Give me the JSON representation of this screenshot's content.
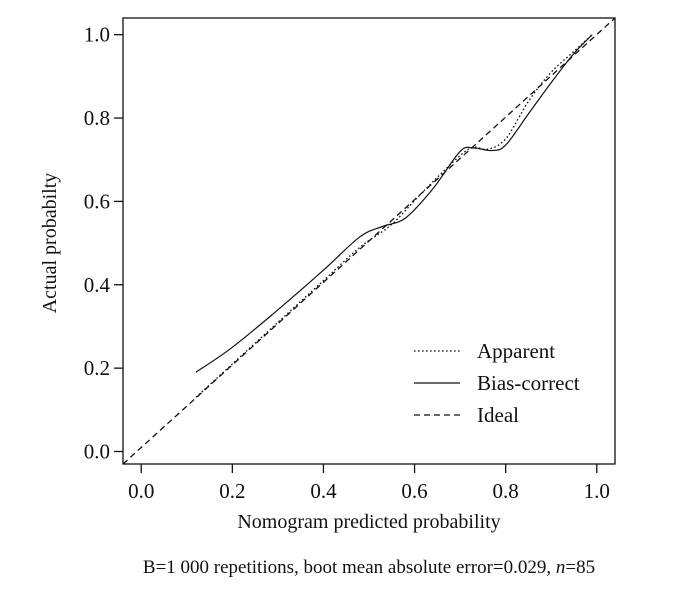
{
  "chart_data": {
    "type": "line",
    "title": "",
    "xlabel": "Nomogram predicted probability",
    "ylabel": "Actual probabilty",
    "xlim": [
      -0.04,
      1.04
    ],
    "ylim": [
      -0.03,
      1.04
    ],
    "x_ticks": [
      0.0,
      0.2,
      0.4,
      0.6,
      0.8,
      1.0
    ],
    "y_ticks": [
      0.0,
      0.2,
      0.4,
      0.6,
      0.8,
      1.0
    ],
    "x_tick_labels": [
      "0.0",
      "0.2",
      "0.4",
      "0.6",
      "0.8",
      "1.0"
    ],
    "y_tick_labels": [
      "0.0",
      "0.2",
      "0.4",
      "0.6",
      "0.8",
      "1.0"
    ],
    "grid": false,
    "legend_position": "bottom-right",
    "series": [
      {
        "name": "Apparent",
        "style": "dotted",
        "points": [
          [
            0.12,
            0.13
          ],
          [
            0.2,
            0.21
          ],
          [
            0.3,
            0.31
          ],
          [
            0.4,
            0.41
          ],
          [
            0.48,
            0.49
          ],
          [
            0.55,
            0.545
          ],
          [
            0.62,
            0.625
          ],
          [
            0.7,
            0.71
          ],
          [
            0.73,
            0.73
          ],
          [
            0.76,
            0.725
          ],
          [
            0.8,
            0.75
          ],
          [
            0.85,
            0.84
          ],
          [
            0.9,
            0.91
          ],
          [
            0.95,
            0.96
          ],
          [
            0.99,
            1.0
          ]
        ]
      },
      {
        "name": "Bias-correct",
        "style": "solid",
        "points": [
          [
            0.12,
            0.19
          ],
          [
            0.2,
            0.25
          ],
          [
            0.3,
            0.34
          ],
          [
            0.4,
            0.435
          ],
          [
            0.48,
            0.515
          ],
          [
            0.53,
            0.54
          ],
          [
            0.58,
            0.56
          ],
          [
            0.64,
            0.63
          ],
          [
            0.7,
            0.72
          ],
          [
            0.73,
            0.728
          ],
          [
            0.77,
            0.722
          ],
          [
            0.8,
            0.735
          ],
          [
            0.85,
            0.81
          ],
          [
            0.9,
            0.885
          ],
          [
            0.95,
            0.955
          ],
          [
            0.99,
            1.0
          ]
        ]
      },
      {
        "name": "Ideal",
        "style": "dashed",
        "points": [
          [
            -0.04,
            -0.03
          ],
          [
            1.04,
            1.04
          ]
        ]
      }
    ],
    "caption": {
      "prefix": "B=1 000 repetitions, boot mean absolute error=0.029, ",
      "n_symbol": "n",
      "n_value": "=85"
    }
  }
}
